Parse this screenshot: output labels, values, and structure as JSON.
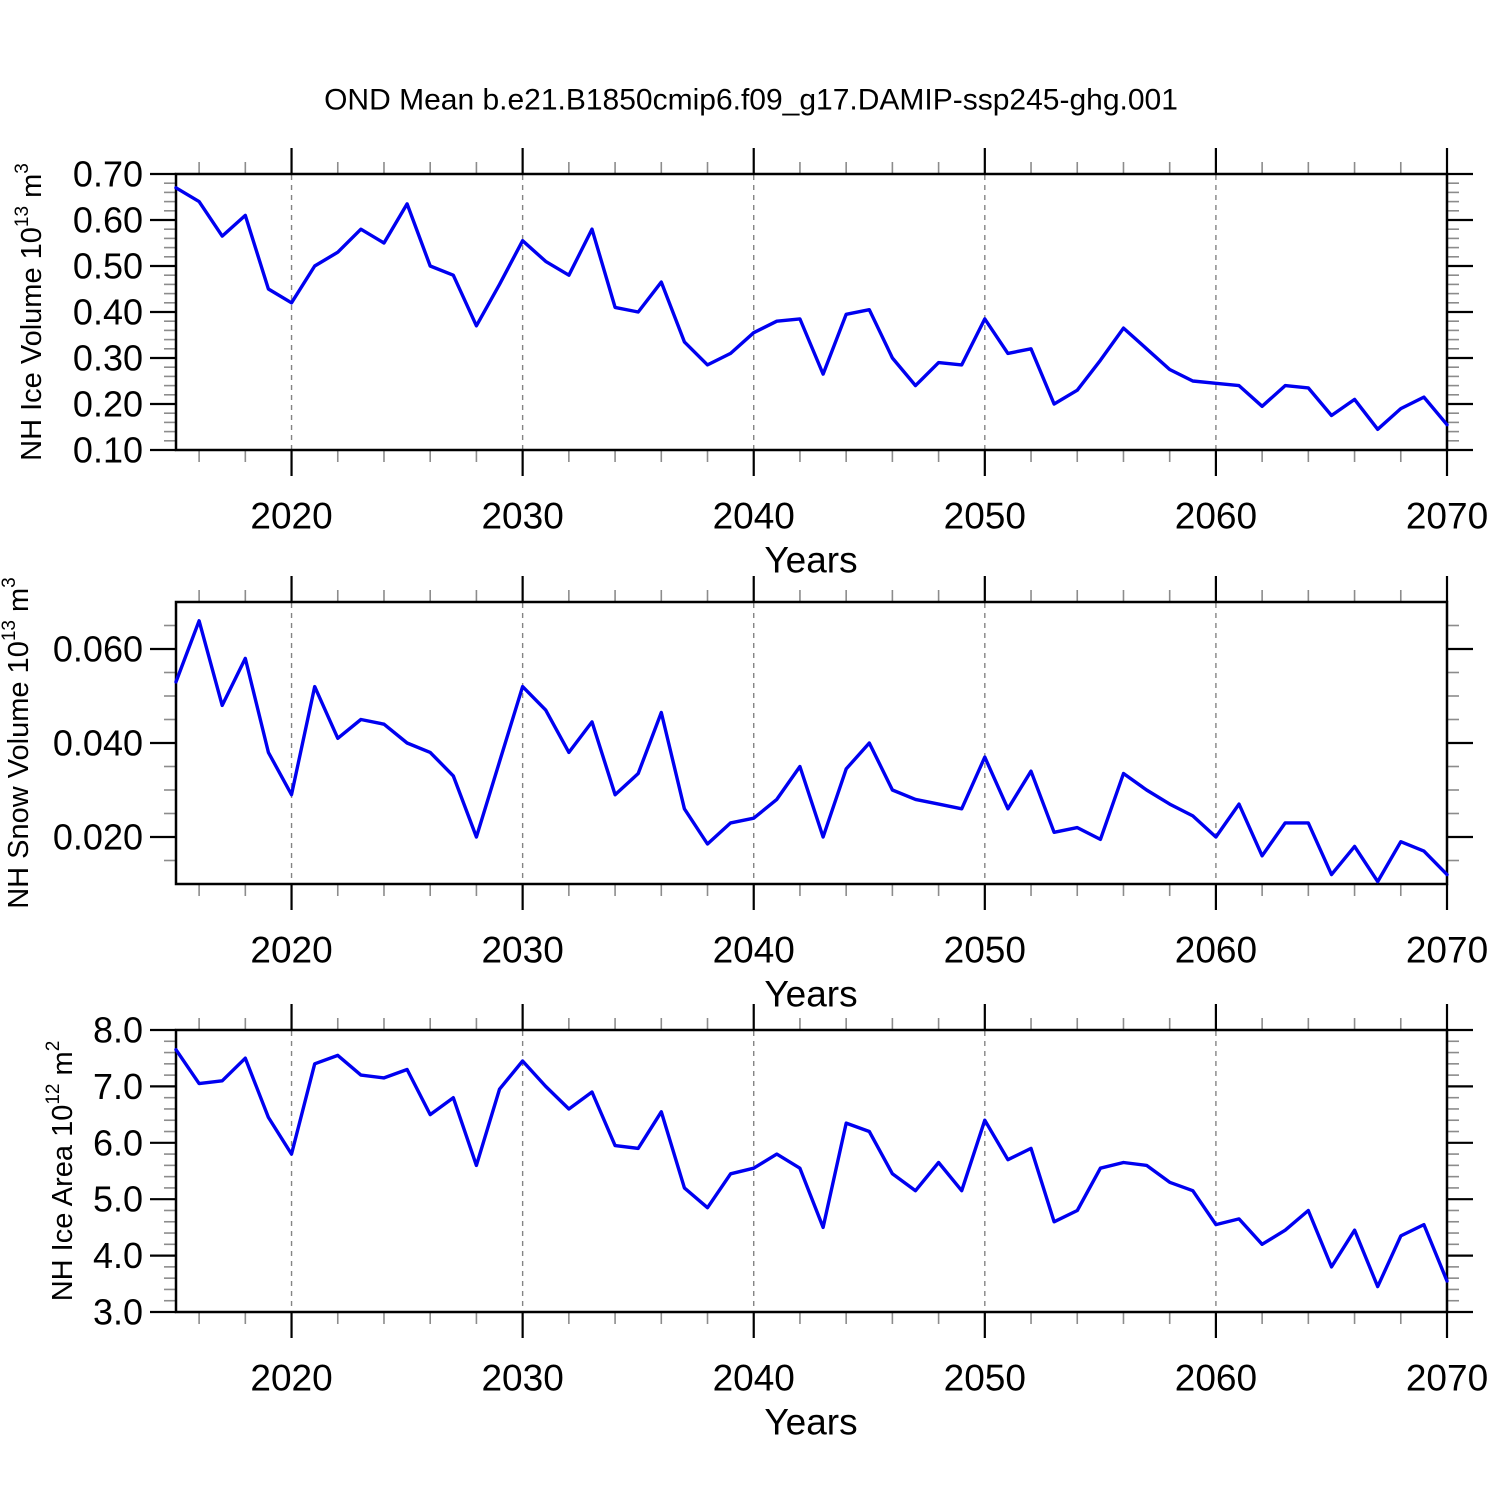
{
  "title": "OND Mean b.e21.B1850cmip6.f09_g17.DAMIP-ssp245-ghg.001",
  "colors": {
    "line": "#0000f0",
    "grid": "#848484",
    "axis": "#000000",
    "minor_tick": "#8c8c8c",
    "text": "#000000",
    "background": "#ffffff"
  },
  "chart_data": {
    "type": "line",
    "title": "OND Mean b.e21.B1850cmip6.f09_g17.DAMIP-ssp245-ghg.001",
    "x_label": "Years",
    "x_range": [
      2015,
      2070
    ],
    "x_major_ticks": [
      2020,
      2030,
      2040,
      2050,
      2060,
      2070
    ],
    "x_major_tick_labels": [
      "2020",
      "2030",
      "2040",
      "2050",
      "2060",
      "2070"
    ],
    "x_minor_tick_step": 2,
    "grid_lines_at": [
      2020,
      2030,
      2040,
      2050,
      2060
    ],
    "grid_style": "dashed-vertical",
    "legend": "none",
    "years": [
      2015,
      2016,
      2017,
      2018,
      2019,
      2020,
      2021,
      2022,
      2023,
      2024,
      2025,
      2026,
      2027,
      2028,
      2029,
      2030,
      2031,
      2032,
      2033,
      2034,
      2035,
      2036,
      2037,
      2038,
      2039,
      2040,
      2041,
      2042,
      2043,
      2044,
      2045,
      2046,
      2047,
      2048,
      2049,
      2050,
      2051,
      2052,
      2053,
      2054,
      2055,
      2056,
      2057,
      2058,
      2059,
      2060,
      2061,
      2062,
      2063,
      2064,
      2065,
      2066,
      2067,
      2068,
      2069,
      2070
    ],
    "panels": [
      {
        "name": "NH Ice Volume",
        "ylabel_text": "NH Ice Volume 10^13 m^3",
        "ylabel_parts": {
          "base": "NH Ice Volume 10",
          "sup1": "13",
          "mid": " m",
          "sup2": "3"
        },
        "ylim": [
          0.1,
          0.7
        ],
        "ytick_values": [
          0.1,
          0.2,
          0.3,
          0.4,
          0.5,
          0.6,
          0.7
        ],
        "ytick_labels": [
          "0.10",
          "0.20",
          "0.30",
          "0.40",
          "0.50",
          "0.60",
          "0.70"
        ],
        "y_minor_step": 0.02,
        "values": [
          0.67,
          0.64,
          0.565,
          0.61,
          0.45,
          0.42,
          0.5,
          0.53,
          0.58,
          0.55,
          0.635,
          0.5,
          0.48,
          0.37,
          0.46,
          0.555,
          0.51,
          0.48,
          0.58,
          0.41,
          0.4,
          0.465,
          0.335,
          0.285,
          0.31,
          0.355,
          0.38,
          0.385,
          0.265,
          0.395,
          0.405,
          0.3,
          0.24,
          0.29,
          0.285,
          0.385,
          0.31,
          0.32,
          0.2,
          0.23,
          0.295,
          0.365,
          0.32,
          0.275,
          0.25,
          0.245,
          0.24,
          0.195,
          0.24,
          0.235,
          0.175,
          0.21,
          0.145,
          0.19,
          0.215,
          0.155
        ]
      },
      {
        "name": "NH Snow Volume",
        "ylabel_text": "NH Snow Volume 10^13 m^3",
        "ylabel_parts": {
          "base": "NH Snow Volume 10",
          "sup1": "13",
          "mid": " m",
          "sup2": "3"
        },
        "ylim": [
          0.01,
          0.07
        ],
        "ytick_values": [
          0.02,
          0.04,
          0.06
        ],
        "ytick_labels": [
          "0.020",
          "0.040",
          "0.060"
        ],
        "y_minor_step": 0.005,
        "values": [
          0.053,
          0.066,
          0.048,
          0.058,
          0.038,
          0.029,
          0.052,
          0.041,
          0.045,
          0.044,
          0.04,
          0.038,
          0.033,
          0.02,
          0.036,
          0.052,
          0.047,
          0.038,
          0.0445,
          0.029,
          0.0335,
          0.0465,
          0.026,
          0.0185,
          0.023,
          0.024,
          0.028,
          0.035,
          0.02,
          0.0345,
          0.04,
          0.03,
          0.028,
          0.027,
          0.026,
          0.037,
          0.026,
          0.034,
          0.021,
          0.022,
          0.0195,
          0.0335,
          0.03,
          0.027,
          0.0245,
          0.02,
          0.027,
          0.016,
          0.023,
          0.023,
          0.012,
          0.018,
          0.0105,
          0.019,
          0.017,
          0.012
        ]
      },
      {
        "name": "NH Ice Area",
        "ylabel_text": "NH Ice Area 10^12 m^2",
        "ylabel_parts": {
          "base": "NH Ice Area 10",
          "sup1": "12",
          "mid": " m",
          "sup2": "2"
        },
        "ylim": [
          3.0,
          8.0
        ],
        "ytick_values": [
          3.0,
          4.0,
          5.0,
          6.0,
          7.0,
          8.0
        ],
        "ytick_labels": [
          "3.0",
          "4.0",
          "5.0",
          "6.0",
          "7.0",
          "8.0"
        ],
        "y_minor_step": 0.2,
        "values": [
          7.65,
          7.05,
          7.1,
          7.5,
          6.45,
          5.8,
          7.4,
          7.55,
          7.2,
          7.15,
          7.3,
          6.5,
          6.8,
          5.6,
          6.95,
          7.45,
          7.0,
          6.6,
          6.9,
          5.95,
          5.9,
          6.55,
          5.2,
          4.85,
          5.45,
          5.55,
          5.8,
          5.55,
          4.5,
          6.35,
          6.2,
          5.45,
          5.15,
          5.65,
          5.15,
          6.4,
          5.7,
          5.9,
          4.6,
          4.8,
          5.55,
          5.65,
          5.6,
          5.3,
          5.15,
          4.55,
          4.65,
          4.2,
          4.45,
          4.8,
          3.8,
          4.45,
          3.45,
          4.35,
          4.55,
          3.55
        ]
      }
    ]
  }
}
